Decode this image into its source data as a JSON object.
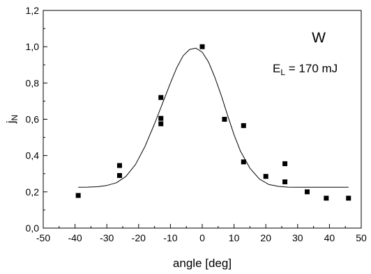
{
  "chart_data": {
    "type": "scatter",
    "title": "",
    "xlabel": "angle  [deg]",
    "ylabel": "j",
    "ylabel_subscript": "N",
    "xlim": [
      -50,
      50
    ],
    "ylim": [
      0.0,
      1.2
    ],
    "x_ticks": [
      -50,
      -40,
      -30,
      -20,
      -10,
      0,
      10,
      20,
      30,
      40,
      50
    ],
    "x_tick_labels": [
      "-50",
      "-40",
      "-30",
      "-20",
      "-10",
      "0",
      "10",
      "20",
      "30",
      "40",
      "50"
    ],
    "y_ticks": [
      0.0,
      0.2,
      0.4,
      0.6,
      0.8,
      1.0,
      1.2
    ],
    "y_tick_labels": [
      "0,0",
      "0,2",
      "0,4",
      "0,6",
      "0,8",
      "1,0",
      "1,2"
    ],
    "grid": false,
    "legend": "none",
    "annotations": {
      "element": "W",
      "energy_prefix": "E",
      "energy_subscript": "L",
      "energy_suffix": " = 170 mJ"
    },
    "series": [
      {
        "kind": "points",
        "marker": "square",
        "color": "#000000",
        "x": [
          -39,
          -26,
          -26,
          -13,
          -13,
          -13,
          0,
          7,
          13,
          13,
          20,
          26,
          26,
          33,
          39,
          46
        ],
        "y": [
          0.18,
          0.345,
          0.29,
          0.72,
          0.605,
          0.575,
          1.0,
          0.6,
          0.565,
          0.365,
          0.285,
          0.355,
          0.255,
          0.2,
          0.165,
          0.165
        ]
      },
      {
        "kind": "fit-curve",
        "color": "#000000",
        "x": [
          -39,
          -36,
          -33,
          -30,
          -27,
          -24,
          -21,
          -18,
          -15,
          -12,
          -10,
          -8,
          -6,
          -4,
          -2,
          0,
          2,
          4,
          6,
          8,
          10,
          12,
          15,
          18,
          21,
          24,
          27,
          30,
          33,
          36,
          40,
          44,
          46
        ],
        "y": [
          0.225,
          0.226,
          0.228,
          0.235,
          0.25,
          0.285,
          0.35,
          0.45,
          0.575,
          0.71,
          0.8,
          0.885,
          0.95,
          0.985,
          0.992,
          0.97,
          0.915,
          0.83,
          0.73,
          0.62,
          0.515,
          0.425,
          0.33,
          0.27,
          0.24,
          0.23,
          0.226,
          0.225,
          0.225,
          0.225,
          0.225,
          0.225,
          0.225
        ]
      }
    ]
  }
}
